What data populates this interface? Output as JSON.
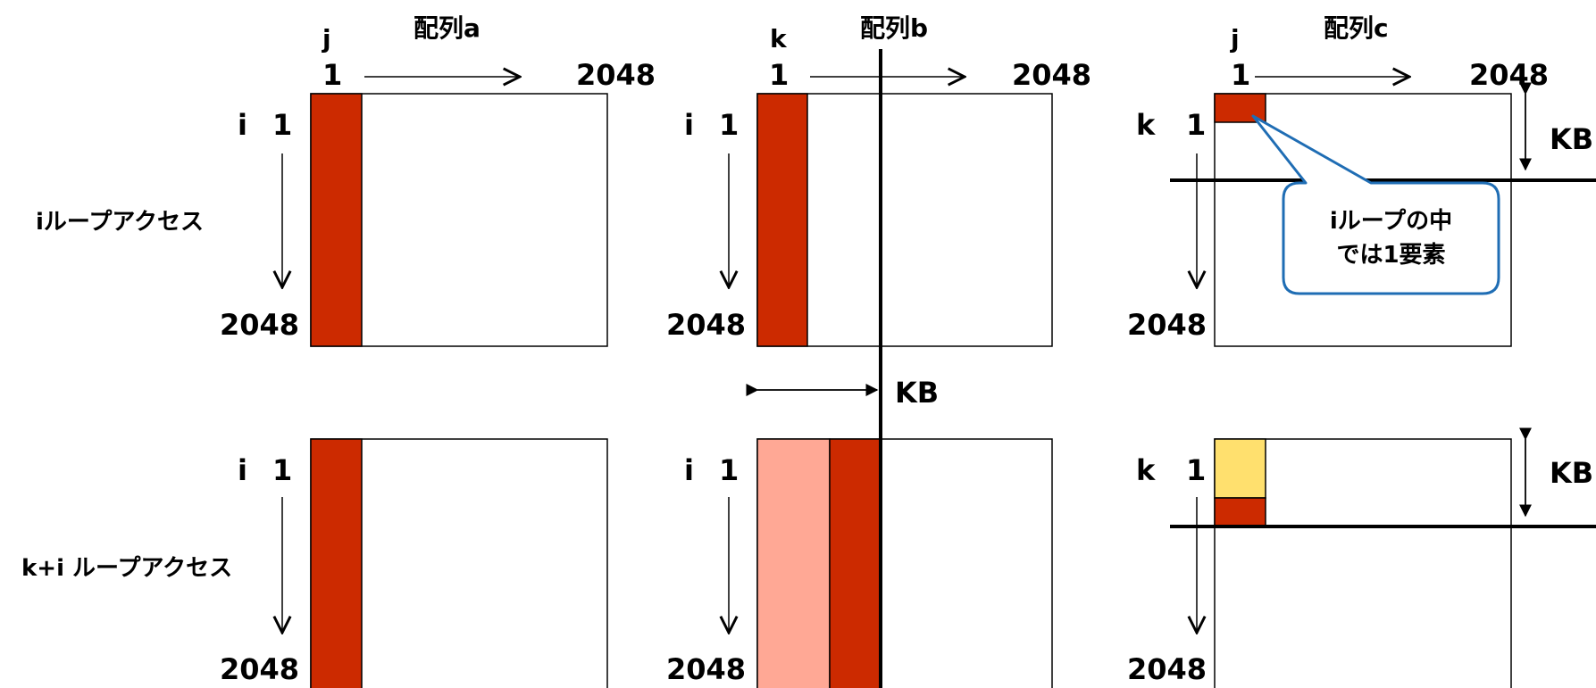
{
  "colors": {
    "red": "#cc2a00",
    "pink": "#ffa895",
    "yellow": "#ffe06e",
    "callout_border": "#1f6db4",
    "line": "#000000"
  },
  "panels": {
    "a": {
      "title": "配列a",
      "col_var": "j",
      "start": "1",
      "end": "2048"
    },
    "b": {
      "title": "配列b",
      "col_var": "k",
      "start": "1",
      "end": "2048"
    },
    "c": {
      "title": "配列c",
      "col_var": "j",
      "start": "1",
      "end": "2048"
    }
  },
  "rows": {
    "top": {
      "label": "iループアクセス",
      "a_var": "i",
      "a_start": "1",
      "a_end": "2048",
      "b_var": "i",
      "b_start": "1",
      "b_end": "2048",
      "c_var": "k",
      "c_start": "1",
      "c_end": "2048"
    },
    "bottom": {
      "label": "k+i ループアクセス",
      "a_var": "i",
      "a_start": "1",
      "a_end": "2048",
      "b_var": "i",
      "b_start": "1",
      "b_end": "2048",
      "c_var": "k",
      "c_start": "1",
      "c_end": "2048"
    }
  },
  "kb_labels": {
    "middle": "KB",
    "c_top": "KB",
    "c_bottom": "KB"
  },
  "callout": {
    "line1": "iループの中",
    "line2": "では1要素"
  }
}
